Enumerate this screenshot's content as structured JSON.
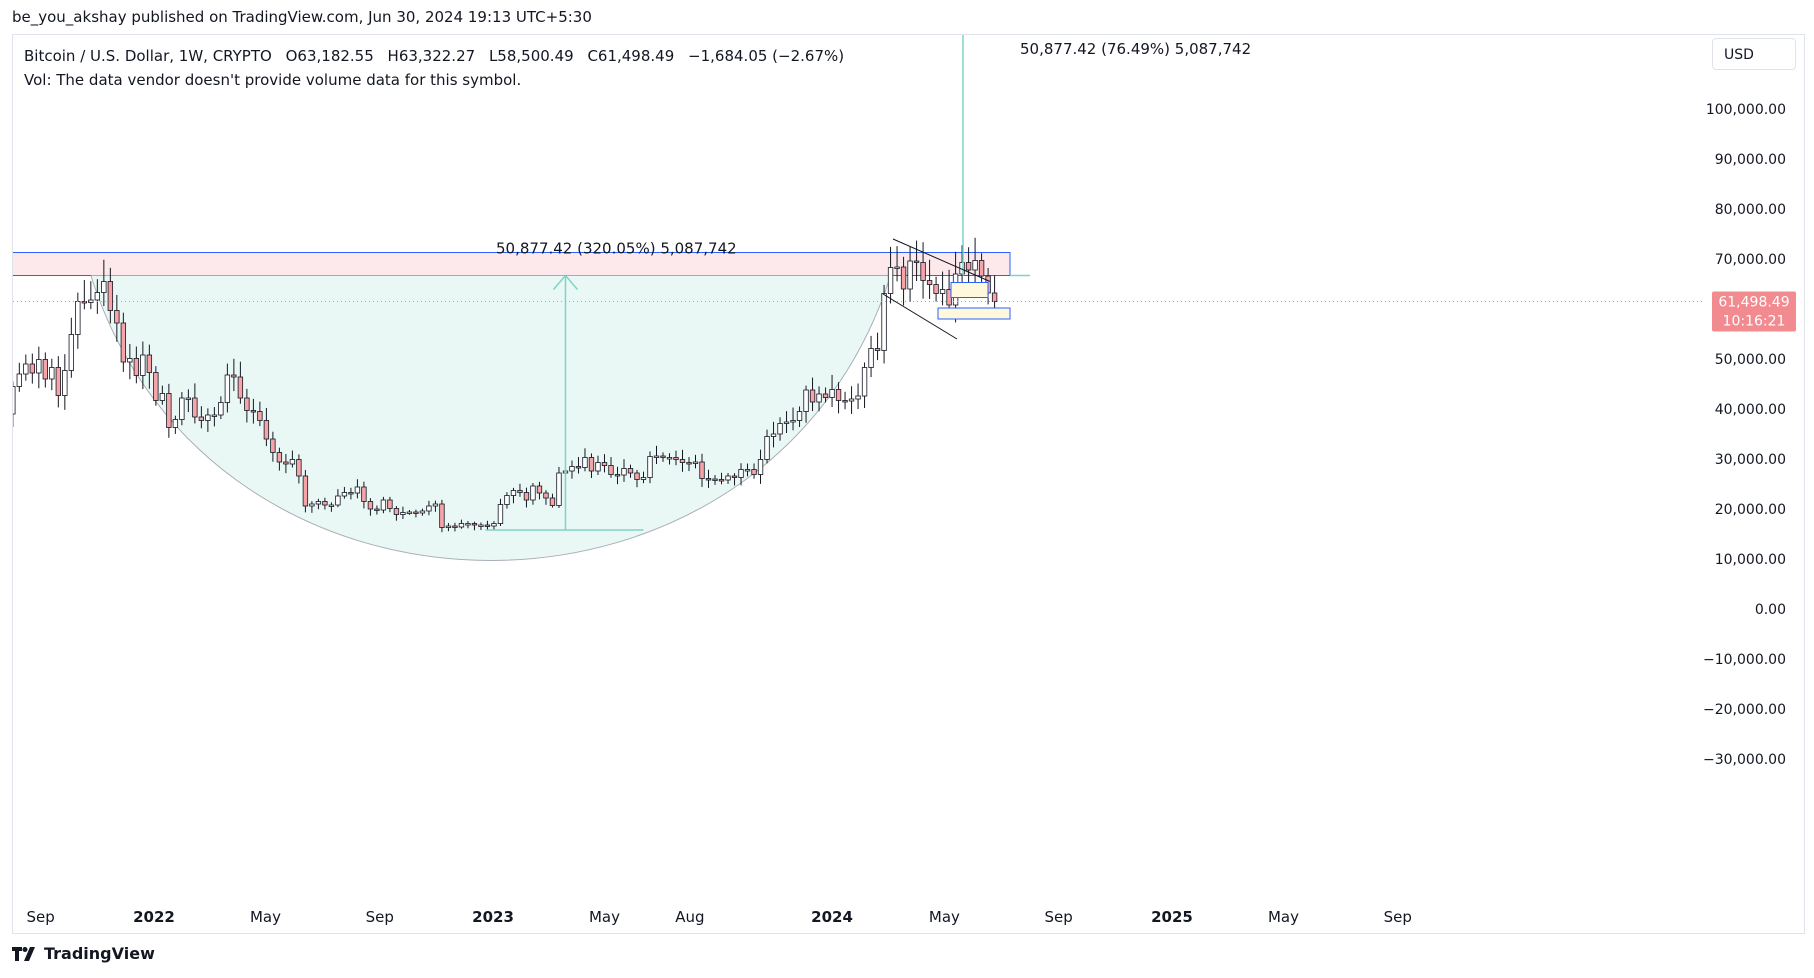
{
  "header": {
    "publisher": "be_you_akshay published on TradingView.com, Jun 30, 2024 19:13 UTC+5:30"
  },
  "legend": {
    "symbol": "Bitcoin / U.S. Dollar, 1W, CRYPTO",
    "open": "O63,182.55",
    "high": "H63,322.27",
    "low": "L58,500.49",
    "close": "C61,498.49",
    "change": "−1,684.05 (−2.67%)",
    "volume_note": "Vol: The data vendor doesn't provide volume data for this symbol."
  },
  "currency_button": "USD",
  "footer": {
    "brand": "TradingView"
  },
  "colors": {
    "up": "#26a69a",
    "down": "#ef5350",
    "up_candle": "#ffffff",
    "down_candle": "#f7a4a8",
    "measure": "#7fd3c8",
    "bowl_fill": "#eaf8f5",
    "resistance_border": "#2962ff",
    "resistance_fill": "#fde8ec",
    "price_tag": "#f28b90"
  },
  "chart_data": {
    "type": "candlestick",
    "interval": "1W",
    "y_axis": {
      "min": -30000,
      "max": 100000,
      "tick_labels": [
        "100,000.00",
        "90,000.00",
        "80,000.00",
        "70,000.00",
        "60,000.00",
        "50,000.00",
        "40,000.00",
        "30,000.00",
        "20,000.00",
        "10,000.00",
        "0.00",
        "−10,000.00",
        "−20,000.00",
        "−30,000.00"
      ],
      "ticks": [
        100000,
        90000,
        80000,
        70000,
        60000,
        50000,
        40000,
        30000,
        20000,
        10000,
        0,
        -10000,
        -20000,
        -30000
      ]
    },
    "x_axis": {
      "labels": [
        {
          "text": "Sep",
          "date": "2021-09-01",
          "bold": false
        },
        {
          "text": "2022",
          "date": "2022-01-01",
          "bold": true
        },
        {
          "text": "May",
          "date": "2022-05-01",
          "bold": false
        },
        {
          "text": "Sep",
          "date": "2022-09-01",
          "bold": false
        },
        {
          "text": "2023",
          "date": "2023-01-01",
          "bold": true
        },
        {
          "text": "May",
          "date": "2023-05-01",
          "bold": false
        },
        {
          "text": "Aug",
          "date": "2023-08-01",
          "bold": false
        },
        {
          "text": "2024",
          "date": "2024-01-01",
          "bold": true
        },
        {
          "text": "May",
          "date": "2024-05-01",
          "bold": false
        },
        {
          "text": "Sep",
          "date": "2024-09-01",
          "bold": false
        },
        {
          "text": "2025",
          "date": "2025-01-01",
          "bold": true
        },
        {
          "text": "May",
          "date": "2025-05-01",
          "bold": false
        },
        {
          "text": "Sep",
          "date": "2025-09-01",
          "bold": false
        }
      ]
    },
    "last_price": {
      "value": 61498.49,
      "label": "61,498.49",
      "countdown": "10:16:21"
    },
    "close_series": [
      {
        "date": "2021-07-26",
        "close": 39000
      },
      {
        "date": "2021-08-02",
        "close": 44500
      },
      {
        "date": "2021-08-09",
        "close": 47000
      },
      {
        "date": "2021-08-16",
        "close": 49000
      },
      {
        "date": "2021-08-23",
        "close": 47200
      },
      {
        "date": "2021-08-30",
        "close": 49900
      },
      {
        "date": "2021-09-06",
        "close": 46000
      },
      {
        "date": "2021-09-13",
        "close": 48300
      },
      {
        "date": "2021-09-20",
        "close": 42700
      },
      {
        "date": "2021-09-27",
        "close": 47700
      },
      {
        "date": "2021-10-04",
        "close": 54900
      },
      {
        "date": "2021-10-11",
        "close": 61500
      },
      {
        "date": "2021-10-18",
        "close": 61300
      },
      {
        "date": "2021-10-25",
        "close": 61800
      },
      {
        "date": "2021-11-01",
        "close": 63300
      },
      {
        "date": "2021-11-08",
        "close": 65500
      },
      {
        "date": "2021-11-15",
        "close": 59700
      },
      {
        "date": "2021-11-22",
        "close": 57200
      },
      {
        "date": "2021-11-29",
        "close": 49400
      },
      {
        "date": "2021-12-06",
        "close": 50100
      },
      {
        "date": "2021-12-13",
        "close": 46700
      },
      {
        "date": "2021-12-20",
        "close": 50800
      },
      {
        "date": "2021-12-27",
        "close": 47300
      },
      {
        "date": "2022-01-03",
        "close": 41700
      },
      {
        "date": "2022-01-10",
        "close": 43100
      },
      {
        "date": "2022-01-17",
        "close": 36300
      },
      {
        "date": "2022-01-24",
        "close": 37900
      },
      {
        "date": "2022-01-31",
        "close": 42200
      },
      {
        "date": "2022-02-07",
        "close": 42200
      },
      {
        "date": "2022-02-14",
        "close": 38400
      },
      {
        "date": "2022-02-21",
        "close": 37700
      },
      {
        "date": "2022-02-28",
        "close": 38800
      },
      {
        "date": "2022-03-07",
        "close": 38800
      },
      {
        "date": "2022-03-14",
        "close": 41300
      },
      {
        "date": "2022-03-21",
        "close": 46800
      },
      {
        "date": "2022-03-28",
        "close": 46400
      },
      {
        "date": "2022-04-04",
        "close": 42200
      },
      {
        "date": "2022-04-11",
        "close": 39700
      },
      {
        "date": "2022-04-18",
        "close": 39500
      },
      {
        "date": "2022-04-25",
        "close": 37700
      },
      {
        "date": "2022-05-02",
        "close": 34000
      },
      {
        "date": "2022-05-09",
        "close": 31300
      },
      {
        "date": "2022-05-16",
        "close": 29400
      },
      {
        "date": "2022-05-23",
        "close": 29000
      },
      {
        "date": "2022-05-30",
        "close": 29900
      },
      {
        "date": "2022-06-06",
        "close": 26600
      },
      {
        "date": "2022-06-13",
        "close": 20600
      },
      {
        "date": "2022-06-20",
        "close": 21000
      },
      {
        "date": "2022-06-27",
        "close": 21500
      },
      {
        "date": "2022-07-04",
        "close": 20800
      },
      {
        "date": "2022-07-11",
        "close": 20800
      },
      {
        "date": "2022-07-18",
        "close": 22600
      },
      {
        "date": "2022-07-25",
        "close": 23300
      },
      {
        "date": "2022-08-01",
        "close": 23200
      },
      {
        "date": "2022-08-08",
        "close": 24400
      },
      {
        "date": "2022-08-15",
        "close": 21500
      },
      {
        "date": "2022-08-22",
        "close": 20000
      },
      {
        "date": "2022-08-29",
        "close": 19800
      },
      {
        "date": "2022-09-05",
        "close": 21800
      },
      {
        "date": "2022-09-12",
        "close": 20100
      },
      {
        "date": "2022-09-19",
        "close": 18900
      },
      {
        "date": "2022-09-26",
        "close": 19300
      },
      {
        "date": "2022-10-03",
        "close": 19400
      },
      {
        "date": "2022-10-10",
        "close": 19200
      },
      {
        "date": "2022-10-17",
        "close": 19600
      },
      {
        "date": "2022-10-24",
        "close": 20600
      },
      {
        "date": "2022-10-31",
        "close": 21000
      },
      {
        "date": "2022-11-07",
        "close": 16300
      },
      {
        "date": "2022-11-14",
        "close": 16600
      },
      {
        "date": "2022-11-21",
        "close": 16400
      },
      {
        "date": "2022-11-28",
        "close": 17100
      },
      {
        "date": "2022-12-05",
        "close": 17100
      },
      {
        "date": "2022-12-12",
        "close": 16800
      },
      {
        "date": "2022-12-19",
        "close": 16800
      },
      {
        "date": "2022-12-26",
        "close": 16600
      },
      {
        "date": "2023-01-02",
        "close": 17100
      },
      {
        "date": "2023-01-09",
        "close": 20900
      },
      {
        "date": "2023-01-16",
        "close": 22700
      },
      {
        "date": "2023-01-23",
        "close": 23700
      },
      {
        "date": "2023-01-30",
        "close": 23300
      },
      {
        "date": "2023-02-06",
        "close": 21800
      },
      {
        "date": "2023-02-13",
        "close": 24600
      },
      {
        "date": "2023-02-20",
        "close": 23200
      },
      {
        "date": "2023-02-27",
        "close": 22200
      },
      {
        "date": "2023-03-06",
        "close": 20700
      },
      {
        "date": "2023-03-13",
        "close": 27200
      },
      {
        "date": "2023-03-20",
        "close": 27600
      },
      {
        "date": "2023-03-27",
        "close": 28500
      },
      {
        "date": "2023-04-03",
        "close": 28300
      },
      {
        "date": "2023-04-10",
        "close": 30300
      },
      {
        "date": "2023-04-17",
        "close": 27600
      },
      {
        "date": "2023-04-24",
        "close": 29300
      },
      {
        "date": "2023-05-01",
        "close": 28700
      },
      {
        "date": "2023-05-08",
        "close": 26900
      },
      {
        "date": "2023-05-15",
        "close": 26800
      },
      {
        "date": "2023-05-22",
        "close": 28100
      },
      {
        "date": "2023-05-29",
        "close": 27200
      },
      {
        "date": "2023-06-05",
        "close": 25900
      },
      {
        "date": "2023-06-12",
        "close": 26300
      },
      {
        "date": "2023-06-19",
        "close": 30500
      },
      {
        "date": "2023-06-26",
        "close": 30600
      },
      {
        "date": "2023-07-03",
        "close": 30300
      },
      {
        "date": "2023-07-10",
        "close": 30300
      },
      {
        "date": "2023-07-17",
        "close": 29900
      },
      {
        "date": "2023-07-24",
        "close": 29300
      },
      {
        "date": "2023-07-31",
        "close": 29100
      },
      {
        "date": "2023-08-07",
        "close": 29400
      },
      {
        "date": "2023-08-14",
        "close": 26100
      },
      {
        "date": "2023-08-21",
        "close": 26000
      },
      {
        "date": "2023-08-28",
        "close": 25900
      },
      {
        "date": "2023-09-04",
        "close": 25800
      },
      {
        "date": "2023-09-11",
        "close": 26600
      },
      {
        "date": "2023-09-18",
        "close": 26300
      },
      {
        "date": "2023-09-25",
        "close": 27900
      },
      {
        "date": "2023-10-02",
        "close": 27900
      },
      {
        "date": "2023-10-09",
        "close": 26900
      },
      {
        "date": "2023-10-16",
        "close": 29900
      },
      {
        "date": "2023-10-23",
        "close": 34500
      },
      {
        "date": "2023-10-30",
        "close": 35000
      },
      {
        "date": "2023-11-06",
        "close": 37100
      },
      {
        "date": "2023-11-13",
        "close": 37400
      },
      {
        "date": "2023-11-20",
        "close": 37700
      },
      {
        "date": "2023-11-27",
        "close": 39500
      },
      {
        "date": "2023-12-04",
        "close": 43800
      },
      {
        "date": "2023-12-11",
        "close": 41400
      },
      {
        "date": "2023-12-18",
        "close": 43000
      },
      {
        "date": "2023-12-25",
        "close": 42300
      },
      {
        "date": "2024-01-01",
        "close": 43900
      },
      {
        "date": "2024-01-08",
        "close": 41700
      },
      {
        "date": "2024-01-15",
        "close": 41600
      },
      {
        "date": "2024-01-22",
        "close": 42000
      },
      {
        "date": "2024-01-29",
        "close": 42600
      },
      {
        "date": "2024-02-05",
        "close": 48300
      },
      {
        "date": "2024-02-12",
        "close": 52100
      },
      {
        "date": "2024-02-19",
        "close": 51700
      },
      {
        "date": "2024-02-26",
        "close": 63100
      },
      {
        "date": "2024-03-04",
        "close": 68300
      },
      {
        "date": "2024-03-11",
        "close": 68400
      },
      {
        "date": "2024-03-18",
        "close": 64000
      },
      {
        "date": "2024-03-25",
        "close": 69600
      },
      {
        "date": "2024-04-01",
        "close": 69300
      },
      {
        "date": "2024-04-08",
        "close": 65700
      },
      {
        "date": "2024-04-15",
        "close": 64900
      },
      {
        "date": "2024-04-22",
        "close": 63100
      },
      {
        "date": "2024-04-29",
        "close": 63900
      },
      {
        "date": "2024-05-06",
        "close": 60800
      },
      {
        "date": "2024-05-13",
        "close": 67000
      },
      {
        "date": "2024-05-20",
        "close": 69300
      },
      {
        "date": "2024-05-27",
        "close": 67800
      },
      {
        "date": "2024-06-03",
        "close": 69700
      },
      {
        "date": "2024-06-10",
        "close": 66600
      },
      {
        "date": "2024-06-17",
        "close": 63200
      },
      {
        "date": "2024-06-24",
        "close": 61500
      }
    ],
    "annotations": [
      {
        "type": "measure",
        "label": "50,877.42 (320.05%) 5,087,742",
        "from": 15800,
        "to": 66700
      },
      {
        "type": "measure",
        "label": "50,877.42 (76.49%) 5,087,742",
        "from": 66700,
        "to": 117500
      },
      {
        "type": "zone",
        "name": "resistance",
        "from": 66700,
        "to": 71300
      },
      {
        "type": "cup",
        "bottom": 6700
      }
    ]
  }
}
